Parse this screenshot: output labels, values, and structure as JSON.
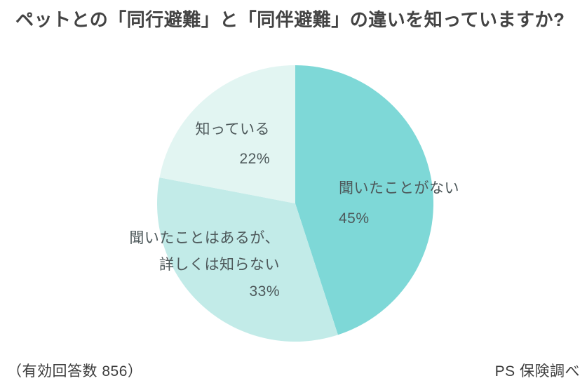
{
  "chart_data": {
    "type": "pie",
    "title": "ペットとの「同行避難」と「同伴避難」の違いを知っていますか?",
    "direction": "clockwise",
    "start_angle_deg": 0,
    "legend_position": "none",
    "labels_on_chart": true,
    "slices": [
      {
        "label": "聞いたことがない",
        "label_lines": [
          "聞いたことがない"
        ],
        "value": 45,
        "pct_label": "45%",
        "color": "#7ed8d7"
      },
      {
        "label": "聞いたことはあるが、詳しくは知らない",
        "label_lines": [
          "聞いたことはあるが、",
          "詳しくは知らない"
        ],
        "value": 33,
        "pct_label": "33%",
        "color": "#c2ebe8"
      },
      {
        "label": "知っている",
        "label_lines": [
          "知っている"
        ],
        "value": 22,
        "pct_label": "22%",
        "color": "#e2f5f2"
      }
    ]
  },
  "footer": {
    "sample_size": "（有効回答数 856）",
    "source": "PS 保険調べ"
  },
  "colors": {
    "background": "#ffffff",
    "title_text": "#434343",
    "label_text": "#4d585a",
    "footer_text": "#3d3d3d"
  }
}
